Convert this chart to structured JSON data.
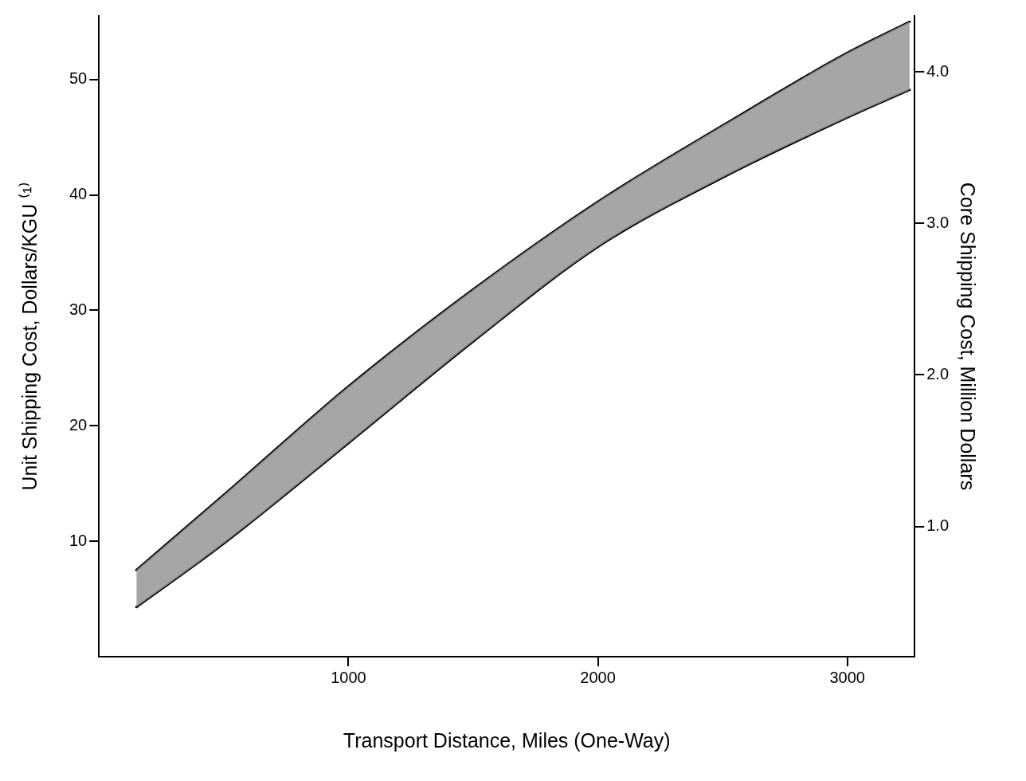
{
  "chart_data": {
    "type": "line",
    "xlabel": "Transport Distance, Miles (One-Way)",
    "ylabel": "Unit Shipping Cost, Dollars/KGU ⁽¹⁾",
    "y2label": "Core Shipping Cost, Million Dollars",
    "xlim": [
      0,
      3270
    ],
    "xticks": [
      1000,
      2000,
      3000
    ],
    "ylim": [
      0,
      55.5
    ],
    "yticks": [
      10,
      20,
      30,
      40,
      50
    ],
    "y2lim": [
      0.14,
      4.37
    ],
    "y2ticks": [
      {
        "value": 1,
        "label": "1.0"
      },
      {
        "value": 2,
        "label": "2.0"
      },
      {
        "value": 3,
        "label": "3.0"
      },
      {
        "value": 4,
        "label": "4.0"
      }
    ],
    "grid": false,
    "legend": false,
    "marker": "none",
    "line_style": "solid",
    "series": [
      {
        "color": "#000000",
        "x": [
          150,
          500,
          1000,
          1500,
          2000,
          2500,
          3000,
          3250
        ],
        "values": [
          7.5,
          14.0,
          23.4,
          31.8,
          39.4,
          46.0,
          52.3,
          55.0
        ],
        "lower": [
          4.3,
          9.8,
          18.5,
          27.3,
          35.5,
          41.5,
          46.7,
          49.1
        ],
        "upper": [
          7.5,
          14.0,
          23.4,
          31.8,
          39.4,
          46.0,
          52.3,
          55.0
        ]
      },
      {
        "color": "#000000",
        "x": [
          150,
          500,
          1000,
          1500,
          2000,
          2500,
          3000,
          3250
        ],
        "values": [
          4.3,
          9.8,
          18.5,
          27.3,
          35.5,
          41.5,
          46.7,
          49.1
        ]
      }
    ]
  }
}
